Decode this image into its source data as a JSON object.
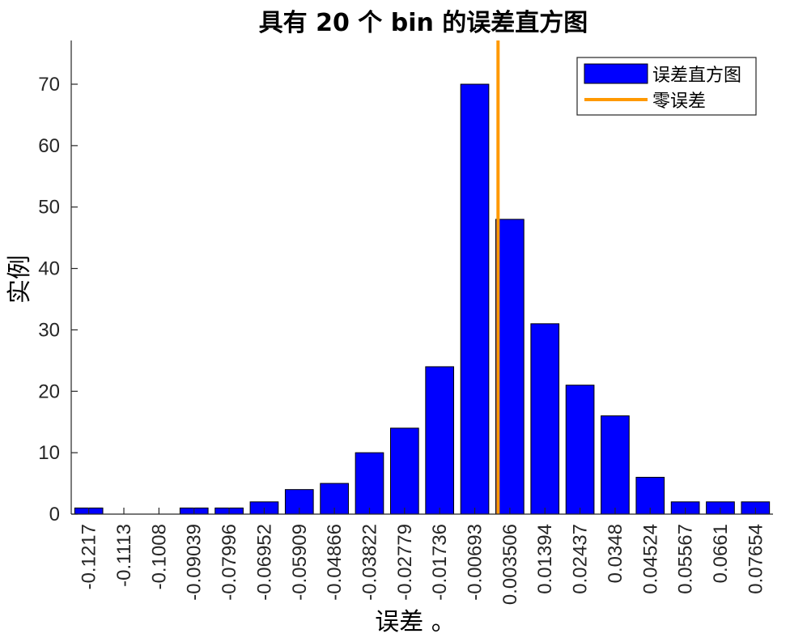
{
  "chart_data": {
    "type": "bar",
    "title": "具有 20 个 bin 的误差直方图",
    "xlabel": "误差 。",
    "ylabel": "实例",
    "categories": [
      "-0.1217",
      "-0.1113",
      "-0.1008",
      "-0.09039",
      "-0.07996",
      "-0.06952",
      "-0.05909",
      "-0.04866",
      "-0.03822",
      "-0.02779",
      "-0.01736",
      "-0.00693",
      "0.003506",
      "0.01394",
      "0.02437",
      "0.0348",
      "0.04524",
      "0.05567",
      "0.0661",
      "0.07654"
    ],
    "series": [
      {
        "name": "误差直方图",
        "color": "#0000ff",
        "values": [
          1,
          0,
          0,
          1,
          1,
          2,
          4,
          5,
          10,
          14,
          24,
          70,
          48,
          31,
          21,
          16,
          6,
          2,
          2,
          2
        ]
      }
    ],
    "zero_error_line": {
      "name": "零误差",
      "color": "#ff9900",
      "x": 0
    },
    "ylim": [
      0,
      77
    ],
    "yticks": [
      0,
      10,
      20,
      30,
      40,
      50,
      60,
      70
    ],
    "grid": false,
    "legend_position": "top-right"
  }
}
